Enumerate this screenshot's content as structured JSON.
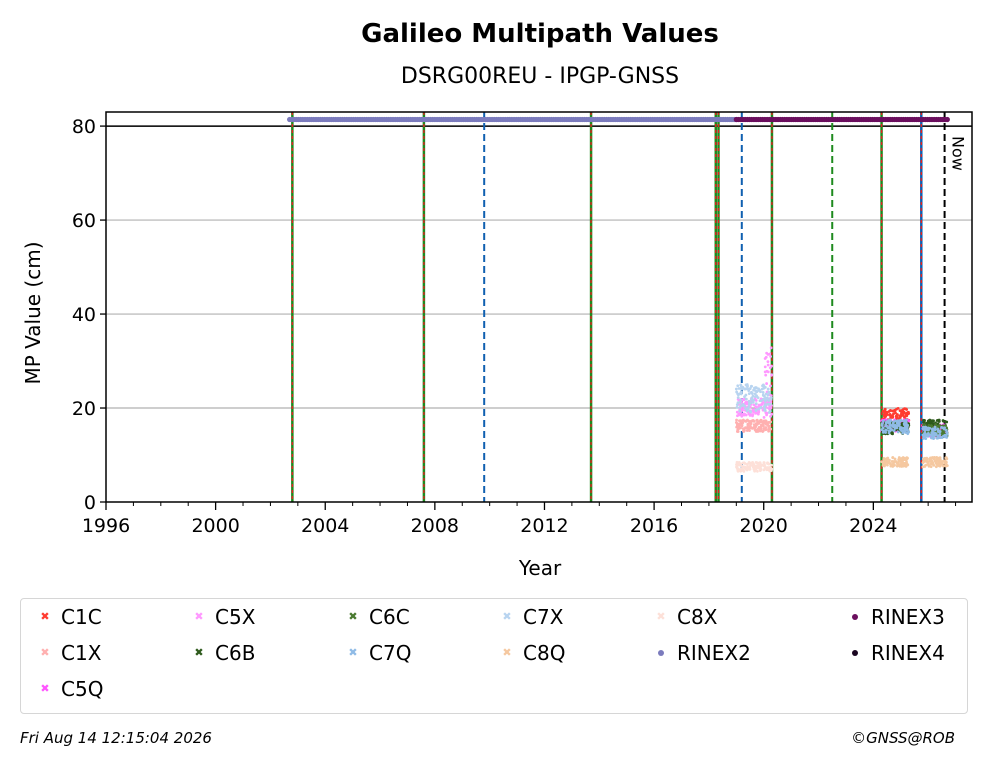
{
  "chart_data": {
    "type": "scatter",
    "title": "Galileo Multipath Values",
    "subtitle": "DSRG00REU - IPGP-GNSS",
    "xlabel": "Year",
    "ylabel": "MP Value (cm)",
    "xlim": [
      1996,
      2027.6
    ],
    "ylim": [
      0,
      83
    ],
    "xticks": [
      1996,
      2000,
      2004,
      2008,
      2012,
      2016,
      2020,
      2024
    ],
    "yticks": [
      0,
      20,
      40,
      60,
      80
    ],
    "grid": "y",
    "legend_position": "bottom",
    "series": [
      {
        "name": "C1C",
        "color": "#ff3b30",
        "marker": "x",
        "ranges": [
          [
            2024.3,
            2025.3,
            17.2,
            20.0
          ]
        ]
      },
      {
        "name": "C1X",
        "color": "#ffb0b0",
        "marker": "x",
        "ranges": [
          [
            2019.0,
            2020.3,
            15.0,
            17.5
          ]
        ]
      },
      {
        "name": "C5Q",
        "color": "#ff55ff",
        "marker": "x",
        "ranges": [
          [
            2024.3,
            2025.3,
            15.0,
            17.5
          ],
          [
            2025.8,
            2026.7,
            14.0,
            16.5
          ]
        ]
      },
      {
        "name": "C5X",
        "color": "#ff99ff",
        "marker": "x",
        "ranges": [
          [
            2019.0,
            2020.3,
            18.0,
            22.0
          ],
          [
            2020.05,
            2020.3,
            22.0,
            33.0
          ]
        ]
      },
      {
        "name": "C6B",
        "color": "#2e5a1c",
        "marker": "x",
        "ranges": [
          [
            2024.3,
            2025.3,
            14.5,
            17.0
          ],
          [
            2025.8,
            2026.7,
            14.5,
            17.5
          ]
        ]
      },
      {
        "name": "C6C",
        "color": "#4a7a30",
        "marker": "x",
        "ranges": [
          [
            2025.8,
            2026.7,
            14.0,
            16.5
          ]
        ]
      },
      {
        "name": "C7Q",
        "color": "#8fbbe6",
        "marker": "x",
        "ranges": [
          [
            2024.3,
            2025.3,
            14.5,
            17.5
          ],
          [
            2025.8,
            2026.7,
            13.5,
            16.0
          ]
        ]
      },
      {
        "name": "C7X",
        "color": "#b8d4f0",
        "marker": "x",
        "ranges": [
          [
            2019.0,
            2020.3,
            19.0,
            25.0
          ]
        ]
      },
      {
        "name": "C8Q",
        "color": "#f5c8a0",
        "marker": "x",
        "ranges": [
          [
            2024.3,
            2025.3,
            7.5,
            9.5
          ],
          [
            2025.8,
            2026.7,
            7.5,
            9.5
          ]
        ]
      },
      {
        "name": "C8X",
        "color": "#fde0d8",
        "marker": "x",
        "ranges": [
          [
            2019.0,
            2020.3,
            6.5,
            8.5
          ]
        ]
      },
      {
        "name": "RINEX2",
        "color": "#7b7bbd",
        "marker": "dot",
        "ranges": [
          [
            2002.7,
            2019.0,
            81.4,
            81.4
          ]
        ]
      },
      {
        "name": "RINEX3",
        "color": "#6b0f5e",
        "marker": "dot",
        "ranges": [
          [
            2019.0,
            2026.7,
            81.4,
            81.4
          ]
        ]
      },
      {
        "name": "RINEX4",
        "color": "#1a0520",
        "marker": "dot",
        "ranges": []
      }
    ],
    "event_lines": [
      {
        "x": 2002.8,
        "style": "green-red"
      },
      {
        "x": 2007.6,
        "style": "green-red"
      },
      {
        "x": 2009.8,
        "style": "blue-dashed"
      },
      {
        "x": 2013.7,
        "style": "green-red"
      },
      {
        "x": 2018.25,
        "style": "green-red"
      },
      {
        "x": 2018.35,
        "style": "green-red"
      },
      {
        "x": 2019.2,
        "style": "blue-dashed"
      },
      {
        "x": 2020.3,
        "style": "green-red"
      },
      {
        "x": 2022.5,
        "style": "green-dashed"
      },
      {
        "x": 2024.3,
        "style": "green-red"
      },
      {
        "x": 2025.75,
        "style": "blue-red"
      },
      {
        "x": 2026.6,
        "style": "black-dashed"
      }
    ],
    "now_label": "Now",
    "reference_line_y": 80
  },
  "footer": {
    "timestamp": "Fri Aug 14 12:15:04 2026",
    "credit": "©GNSS@ROB"
  }
}
